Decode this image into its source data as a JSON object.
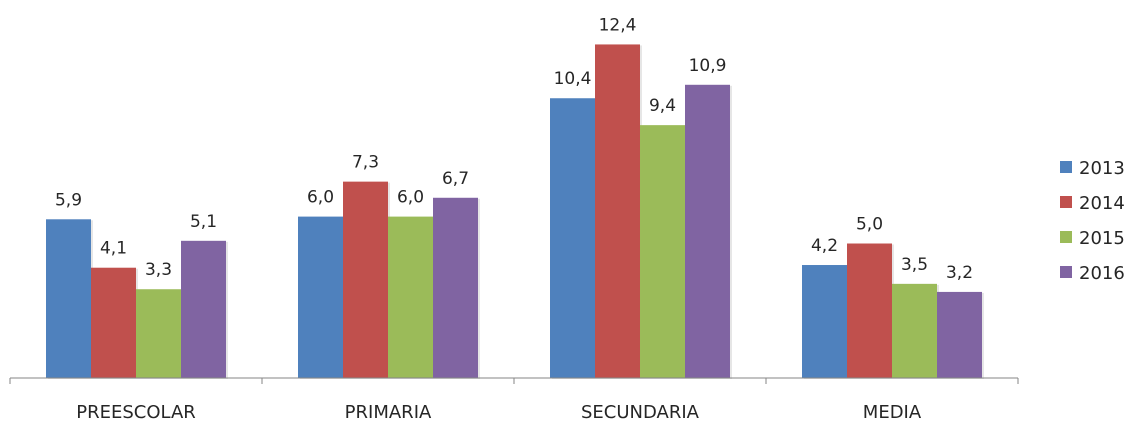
{
  "chart_data": {
    "type": "bar",
    "categories": [
      "PREESCOLAR",
      "PRIMARIA",
      "SECUNDARIA",
      "MEDIA"
    ],
    "series": [
      {
        "name": "2013",
        "color": "#4F81BD",
        "values": [
          5.9,
          6.0,
          10.4,
          4.2
        ],
        "labels": [
          "5,9",
          "6,0",
          "10,4",
          "4,2"
        ]
      },
      {
        "name": "2014",
        "color": "#C0504D",
        "values": [
          4.1,
          7.3,
          12.4,
          5.0
        ],
        "labels": [
          "4,1",
          "7,3",
          "12,4",
          "5,0"
        ]
      },
      {
        "name": "2015",
        "color": "#9BBB59",
        "values": [
          3.3,
          6.0,
          9.4,
          3.5
        ],
        "labels": [
          "3,3",
          "6,0",
          "9,4",
          "3,5"
        ]
      },
      {
        "name": "2016",
        "color": "#8064A2",
        "values": [
          5.1,
          6.7,
          10.9,
          3.2
        ],
        "labels": [
          "5,1",
          "6,7",
          "10,9",
          "3,2"
        ]
      }
    ],
    "ylim": [
      0,
      13
    ],
    "legend_position": "right",
    "grid": false,
    "title": "",
    "xlabel": "",
    "ylabel": ""
  }
}
